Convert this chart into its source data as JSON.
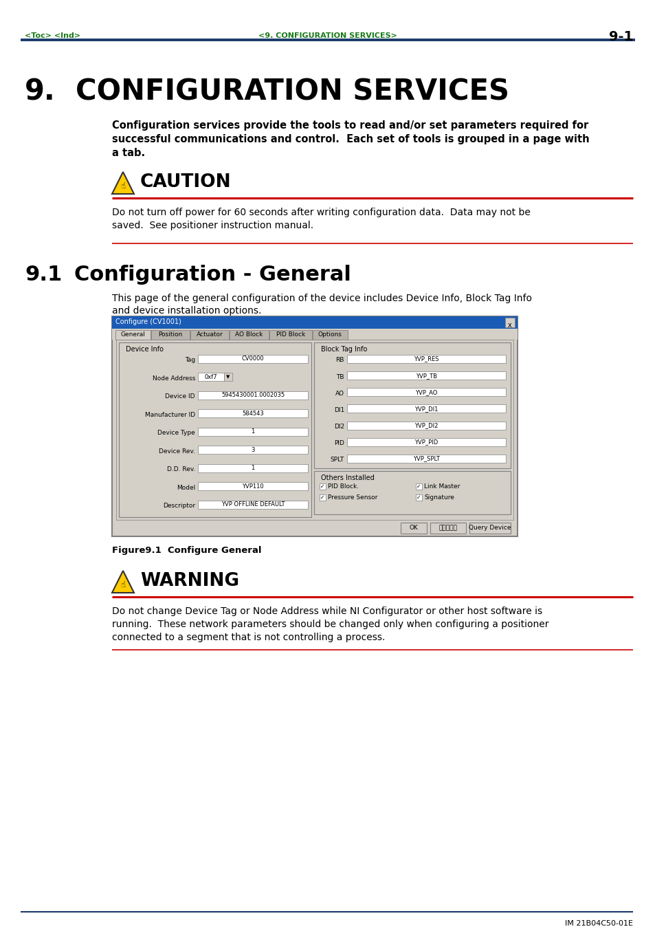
{
  "page_bg": "#ffffff",
  "header_line_color": "#1a3a6b",
  "header_text_color": "#1a7a1a",
  "page_number": "9-1",
  "header_left": "<Toc> <Ind>",
  "header_center": "<9. CONFIGURATION SERVICES>",
  "chapter_number": "9.",
  "chapter_title": "CONFIGURATION SERVICES",
  "section_number": "9.1",
  "section_title": "Configuration - General",
  "intro_text_lines": [
    "Configuration services provide the tools to read and/or set parameters required for",
    "successful communications and control.  Each set of tools is grouped in a page with",
    "a tab."
  ],
  "caution_title": "CAUTION",
  "caution_text_lines": [
    "Do not turn off power for 60 seconds after writing configuration data.  Data may not be",
    "saved.  See positioner instruction manual."
  ],
  "section_desc_lines": [
    "This page of the general configuration of the device includes Device Info, Block Tag Info",
    "and device installation options."
  ],
  "figure_caption": "Figure9.1  Configure General",
  "warning_title": "WARNING",
  "warning_text_lines": [
    "Do not change Device Tag or Node Address while NI Configurator or other host software is",
    "running.  These network parameters should be changed only when configuring a positioner",
    "connected to a segment that is not controlling a process."
  ],
  "footer_text": "IM 21B04C50-01E",
  "red_color": "#cc0000",
  "blue_color": "#1a3a6b",
  "green_color": "#1a7a1a",
  "dlg_fields_left": [
    [
      "Tag",
      "CV0000"
    ],
    [
      "Node Address",
      "0xf7"
    ],
    [
      "Device ID",
      "5945430001.0002035"
    ],
    [
      "Manufacturer ID",
      "584543"
    ],
    [
      "Device Type",
      "1"
    ],
    [
      "Device Rev.",
      "3"
    ],
    [
      "D.D. Rev.",
      "1"
    ],
    [
      "Model",
      "YVP110"
    ],
    [
      "Descriptor",
      "YVP OFFLINE DEFAULT"
    ]
  ],
  "dlg_fields_right": [
    [
      "RB",
      "YVP_RES"
    ],
    [
      "TB",
      "YVP_TB"
    ],
    [
      "AO",
      "YVP_AO"
    ],
    [
      "DI1",
      "YVP_DI1"
    ],
    [
      "DI2",
      "YVP_DI2"
    ],
    [
      "PID",
      "YVP_PID"
    ],
    [
      "SPLT",
      "YVP_SPLT"
    ]
  ],
  "dlg_tabs": [
    "General",
    "Position",
    "Actuator",
    "AO Block",
    "PID Block",
    "Options"
  ],
  "dlg_checkboxes": [
    [
      "PID Block.",
      0,
      0
    ],
    [
      "Link Master",
      1,
      0
    ],
    [
      "Pressure Sensor",
      0,
      1
    ],
    [
      "Signature",
      1,
      1
    ]
  ],
  "dlg_buttons": [
    "OK",
    "キャンセル",
    "Query Device"
  ]
}
